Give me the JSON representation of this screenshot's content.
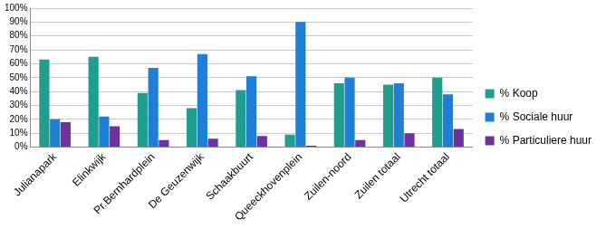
{
  "chart_data": {
    "type": "bar",
    "categories": [
      "Julianapark",
      "Elinkwijk",
      "Pr.Bernhardplein",
      "De Geuzenwijk",
      "Schaakbuurt",
      "Queeckhovenplein",
      "Zuilen-noord",
      "Zuilen totaal",
      "Utrecht totaal"
    ],
    "series": [
      {
        "name": "% Koop",
        "color": "#1f9e8f",
        "values": [
          63,
          65,
          39,
          28,
          41,
          9,
          46,
          45,
          50
        ]
      },
      {
        "name": "% Sociale huur",
        "color": "#1f7fd6",
        "values": [
          20,
          22,
          57,
          67,
          51,
          90,
          50,
          46,
          38
        ]
      },
      {
        "name": "% Particuliere huur",
        "color": "#7030a0",
        "values": [
          18,
          15,
          5,
          6,
          8,
          1,
          5,
          10,
          13
        ]
      }
    ],
    "ylim": [
      0,
      100
    ],
    "yticks": [
      {
        "value": 0,
        "label": "0%"
      },
      {
        "value": 10,
        "label": "10%"
      },
      {
        "value": 20,
        "label": "20%"
      },
      {
        "value": 30,
        "label": "30%"
      },
      {
        "value": 40,
        "label": "40%"
      },
      {
        "value": 50,
        "label": "50%"
      },
      {
        "value": 60,
        "label": "60%"
      },
      {
        "value": 70,
        "label": "70%"
      },
      {
        "value": 80,
        "label": "80%"
      },
      {
        "value": 90,
        "label": "90%"
      },
      {
        "value": 100,
        "label": "100%"
      }
    ],
    "grid": true,
    "legend": "right"
  }
}
